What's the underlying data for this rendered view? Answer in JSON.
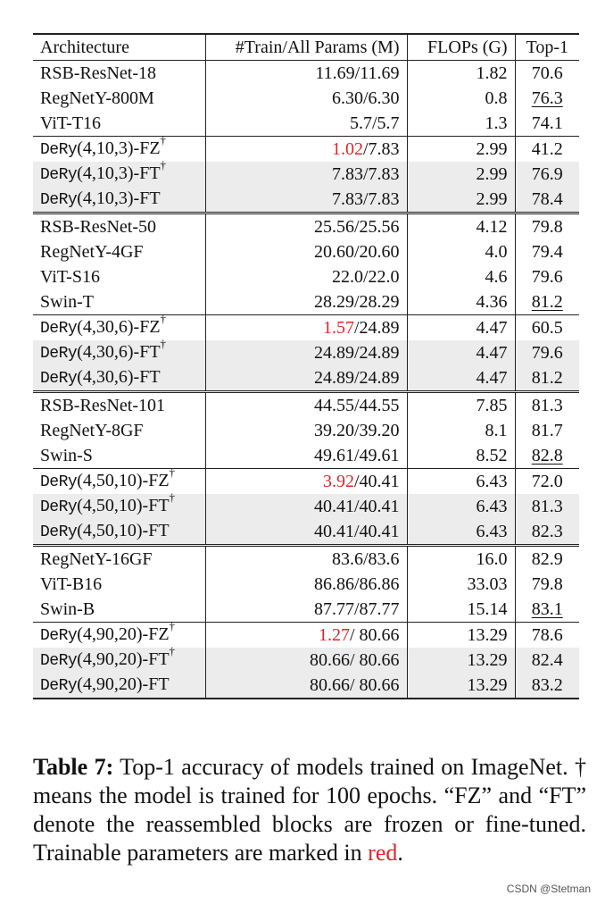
{
  "table": {
    "headers": [
      "Architecture",
      "#Train/All Params (M)",
      "FLOPs (G)",
      "Top-1"
    ],
    "rows": [
      {
        "arch": "RSB-ResNet-18",
        "params": "11.69/11.69",
        "flops": "1.82",
        "top1": "70.6"
      },
      {
        "arch": "RegNetY-800M",
        "params": "6.30/6.30",
        "flops": "0.8",
        "top1": "76.3",
        "underline": true
      },
      {
        "arch": "ViT-T16",
        "params": "5.7/5.7",
        "flops": "1.3",
        "top1": "74.1"
      },
      {
        "arch_code": "DeRy",
        "arch_suffix": "(4,10,3)-FZ",
        "dagger": "†",
        "params_red": "1.02",
        "params_rest": "/7.83",
        "flops": "2.99",
        "top1": "41.2"
      },
      {
        "arch_code": "DeRy",
        "arch_suffix": "(4,10,3)-FT",
        "dagger": "†",
        "params": "7.83/7.83",
        "flops": "2.99",
        "top1": "76.9"
      },
      {
        "arch_code": "DeRy",
        "arch_suffix": "(4,10,3)-FT",
        "params": "7.83/7.83",
        "flops": "2.99",
        "top1": "78.4"
      },
      {
        "arch": "RSB-ResNet-50",
        "params": "25.56/25.56",
        "flops": "4.12",
        "top1": "79.8"
      },
      {
        "arch": "RegNetY-4GF",
        "params": "20.60/20.60",
        "flops": "4.0",
        "top1": "79.4"
      },
      {
        "arch": "ViT-S16",
        "params": "22.0/22.0",
        "flops": "4.6",
        "top1": "79.6"
      },
      {
        "arch": "Swin-T",
        "params": "28.29/28.29",
        "flops": "4.36",
        "top1": "81.2",
        "underline": true
      },
      {
        "arch_code": "DeRy",
        "arch_suffix": "(4,30,6)-FZ",
        "dagger": "†",
        "params_red": "1.57",
        "params_rest": "/24.89",
        "flops": "4.47",
        "top1": "60.5"
      },
      {
        "arch_code": "DeRy",
        "arch_suffix": "(4,30,6)-FT",
        "dagger": "†",
        "params": "24.89/24.89",
        "flops": "4.47",
        "top1": "79.6"
      },
      {
        "arch_code": "DeRy",
        "arch_suffix": "(4,30,6)-FT",
        "params": "24.89/24.89",
        "flops": "4.47",
        "top1": "81.2"
      },
      {
        "arch": "RSB-ResNet-101",
        "params": "44.55/44.55",
        "flops": "7.85",
        "top1": "81.3"
      },
      {
        "arch": "RegNetY-8GF",
        "params": "39.20/39.20",
        "flops": "8.1",
        "top1": "81.7"
      },
      {
        "arch": "Swin-S",
        "params": "49.61/49.61",
        "flops": "8.52",
        "top1": "82.8",
        "underline": true
      },
      {
        "arch_code": "DeRy",
        "arch_suffix": "(4,50,10)-FZ",
        "dagger": "†",
        "params_red": "3.92",
        "params_rest": "/40.41",
        "flops": "6.43",
        "top1": "72.0"
      },
      {
        "arch_code": "DeRy",
        "arch_suffix": "(4,50,10)-FT",
        "dagger": "†",
        "params": "40.41/40.41",
        "flops": "6.43",
        "top1": "81.3"
      },
      {
        "arch_code": "DeRy",
        "arch_suffix": "(4,50,10)-FT",
        "params": "40.41/40.41",
        "flops": "6.43",
        "top1": "82.3"
      },
      {
        "arch": "RegNetY-16GF",
        "params": "83.6/83.6",
        "flops": "16.0",
        "top1": "82.9"
      },
      {
        "arch": "ViT-B16",
        "params": "86.86/86.86",
        "flops": "33.03",
        "top1": "79.8"
      },
      {
        "arch": "Swin-B",
        "params": "87.77/87.77",
        "flops": "15.14",
        "top1": "83.1",
        "underline": true
      },
      {
        "arch_code": "DeRy",
        "arch_suffix": "(4,90,20)-FZ",
        "dagger": "†",
        "params_red": "1.27",
        "params_rest": "/ 80.66",
        "flops": "13.29",
        "top1": "78.6"
      },
      {
        "arch_code": "DeRy",
        "arch_suffix": "(4,90,20)-FT",
        "dagger": "†",
        "params": "80.66/ 80.66",
        "flops": "13.29",
        "top1": "82.4"
      },
      {
        "arch_code": "DeRy",
        "arch_suffix": "(4,90,20)-FT",
        "params": "80.66/ 80.66",
        "flops": "13.29",
        "top1": "83.2"
      }
    ]
  },
  "caption": {
    "label": "Table 7:",
    "text1": " Top-1 accuracy of models trained on ImageNet. † means the model is trained for 100 epochs. “FZ” and “FT” denote the reassembled blocks are frozen or fine-tuned. Trainable parameters are marked in ",
    "red_word": "red",
    "text2": "."
  },
  "watermark": "CSDN @Stetman",
  "colors": {
    "red": "#e0232a",
    "shade": "#ececec"
  }
}
